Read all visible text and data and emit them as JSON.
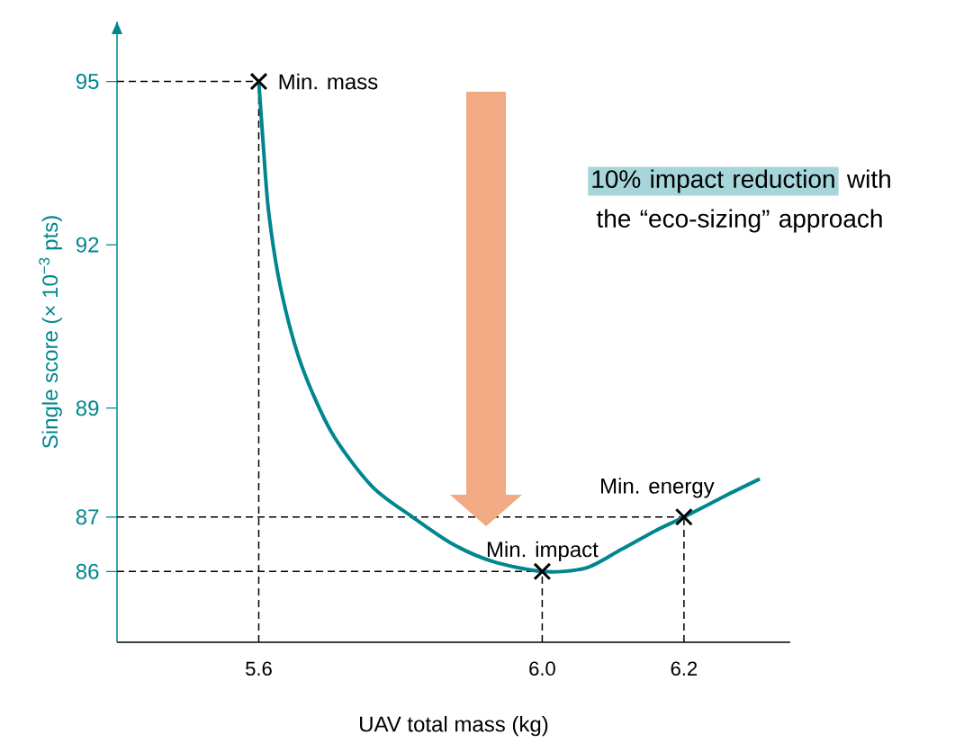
{
  "chart_data": {
    "type": "line",
    "xlabel": "UAV total mass (kg)",
    "ylabel": "Single score (× 10$^{−3}$ pts)",
    "xlim": [
      5.4,
      6.35
    ],
    "ylim": [
      84.7,
      96.1
    ],
    "xticks": [
      5.6,
      {
        "value": 6.0,
        "label": "6.0"
      },
      6.2
    ],
    "yticks": [
      86,
      87,
      89,
      92,
      95
    ],
    "series": [
      {
        "color": "#00868f",
        "x": [
          5.6,
          5.606,
          5.614,
          5.631,
          5.66,
          5.703,
          5.76,
          5.817,
          5.874,
          5.931,
          6.0,
          6.061,
          6.111,
          6.16,
          6.2,
          6.26,
          6.307
        ],
        "values": [
          95,
          93.9,
          92.6,
          91.2,
          89.8,
          88.55,
          87.56,
          87.0,
          86.5,
          86.18,
          86.0,
          86.06,
          86.4,
          86.75,
          87.0,
          87.4,
          87.7
        ]
      },
      {
        "type": "scatter",
        "color": "#000000",
        "marker": "cross",
        "x": [
          5.6,
          6.0,
          6.2
        ],
        "values": [
          95,
          86,
          87
        ]
      }
    ],
    "ref_lines": [
      {
        "axis": "x",
        "value": 5.6,
        "color": "#000000",
        "line_style": "dashed"
      },
      {
        "axis": "x",
        "value": 6.0,
        "color": "#000000",
        "line_style": "dashed"
      },
      {
        "axis": "x",
        "value": 6.2,
        "color": "#000000",
        "line_style": "dashed"
      },
      {
        "axis": "y",
        "value": 95,
        "color": "#000000",
        "line_style": "dashed"
      },
      {
        "axis": "y",
        "value": 87,
        "color": "#000000",
        "line_style": "dashed"
      },
      {
        "axis": "y",
        "value": 86,
        "color": "#000000",
        "line_style": "dashed"
      }
    ],
    "annotations": [
      {
        "text": "Min. mass",
        "x": 5.6,
        "y": 95
      },
      {
        "text": "Min. impact",
        "x": 6.0,
        "y": 86
      },
      {
        "text": "Min. energy",
        "x": 6.2,
        "y": 87
      },
      "10% impact reduction",
      "with the “eco-sizing” approach"
    ]
  }
}
